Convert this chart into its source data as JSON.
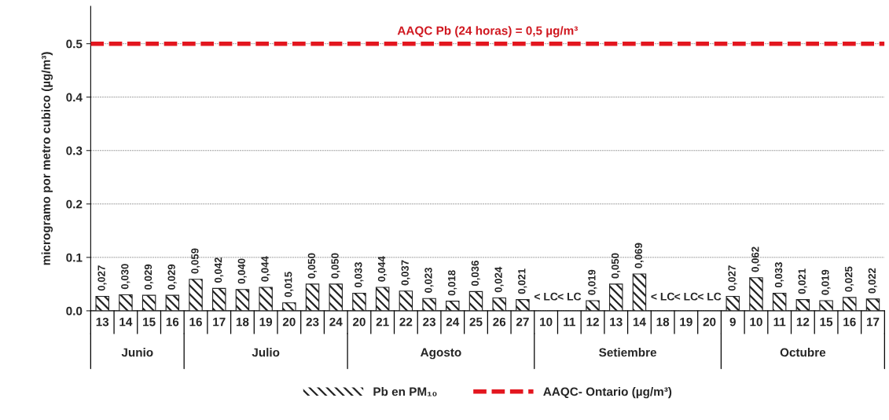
{
  "chart_data": {
    "type": "bar",
    "ylabel": "microgramo por metro cubico (µg/m³)",
    "categories": [
      "13",
      "14",
      "15",
      "16",
      "16",
      "17",
      "18",
      "19",
      "20",
      "23",
      "24",
      "20",
      "21",
      "22",
      "23",
      "24",
      "25",
      "26",
      "27",
      "10",
      "11",
      "12",
      "13",
      "14",
      "18",
      "19",
      "20",
      "9",
      "10",
      "11",
      "12",
      "15",
      "16",
      "17"
    ],
    "series": [
      {
        "name": "Pb en PM₁₀",
        "color": "#222222",
        "values": [
          0.027,
          0.03,
          0.029,
          0.029,
          0.059,
          0.042,
          0.04,
          0.044,
          0.015,
          0.05,
          0.05,
          0.033,
          0.044,
          0.037,
          0.023,
          0.018,
          0.036,
          0.024,
          0.021,
          null,
          null,
          0.019,
          0.05,
          0.069,
          null,
          null,
          null,
          0.027,
          0.062,
          0.033,
          0.021,
          0.019,
          0.025,
          0.022
        ],
        "value_labels": [
          "0,027",
          "0,030",
          "0,029",
          "0,029",
          "0,059",
          "0,042",
          "0,040",
          "0,044",
          "0,015",
          "0,050",
          "0,050",
          "0,033",
          "0,044",
          "0,037",
          "0,023",
          "0,018",
          "0,036",
          "0,024",
          "0,021",
          "< LC",
          "< LC",
          "0,019",
          "0,050",
          "0,069",
          "< LC",
          "< LC",
          "< LC",
          "0,027",
          "0,062",
          "0,033",
          "0,021",
          "0,019",
          "0,025",
          "0,022"
        ]
      }
    ],
    "ref_lines": [
      {
        "axis": "y",
        "value": 0.5,
        "label": "AAQC- Ontario (µg/m³)",
        "color": "#e3161f",
        "line_style": "dashed"
      }
    ],
    "annotations": [
      {
        "text": "AAQC Pb (24 horas) = 0,5 µg/m³",
        "y": 0.5
      },
      "Junio",
      "Julio",
      "Agosto",
      "Setiembre",
      "Octubre"
    ],
    "ylim": [
      0,
      0.57
    ],
    "yticks": [
      {
        "value": 0,
        "label": "0.0"
      },
      0.1,
      0.2,
      0.3,
      0.4,
      0.5
    ],
    "grid": "y",
    "legend": "bottom"
  }
}
